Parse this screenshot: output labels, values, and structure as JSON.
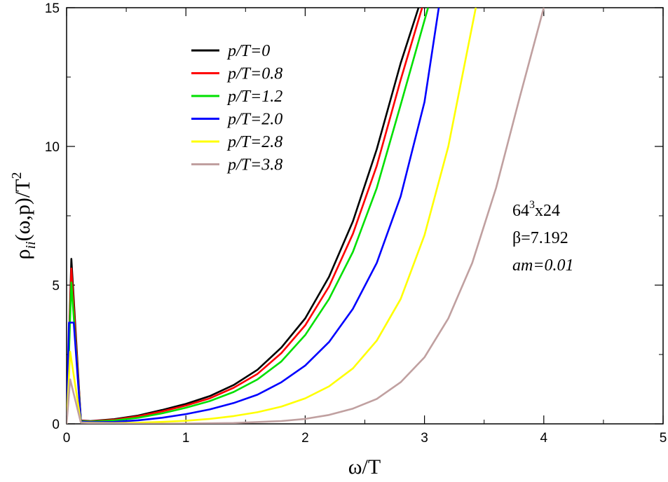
{
  "chart_data": {
    "type": "line",
    "xlabel": "ω/T",
    "ylabel": "ρ",
    "ylabel_sub": "ii",
    "ylabel_tail": "(ω,p)/T",
    "ylabel_sup": "2",
    "xlim": [
      0,
      5
    ],
    "ylim": [
      0,
      15
    ],
    "xticks": [
      "0",
      "1",
      "2",
      "3",
      "4",
      "5"
    ],
    "yticks": [
      "0",
      "5",
      "10",
      "15"
    ],
    "grid": false,
    "legend_position": "top-left",
    "annotations": {
      "lattice_base": "64",
      "lattice_exp": "3",
      "lattice_tail": "x24",
      "beta": "β=7.192",
      "mass": "am=0.01"
    },
    "series": [
      {
        "name": "p/T=0",
        "color": "#000000",
        "x": [
          0,
          0.04,
          0.12,
          0.2,
          0.4,
          0.6,
          0.8,
          1.0,
          1.2,
          1.4,
          1.6,
          1.8,
          2.0,
          2.2,
          2.4,
          2.6,
          2.8,
          2.95
        ],
        "y": [
          0,
          5.95,
          0.12,
          0.1,
          0.17,
          0.3,
          0.5,
          0.72,
          1.0,
          1.4,
          1.95,
          2.75,
          3.8,
          5.3,
          7.3,
          9.9,
          13.0,
          15.0
        ]
      },
      {
        "name": "p/T=0.8",
        "color": "#ff0000",
        "x": [
          0,
          0.04,
          0.12,
          0.2,
          0.4,
          0.6,
          0.8,
          1.0,
          1.2,
          1.4,
          1.6,
          1.8,
          2.0,
          2.2,
          2.4,
          2.6,
          2.8,
          2.98
        ],
        "y": [
          0,
          5.6,
          0.11,
          0.09,
          0.15,
          0.27,
          0.45,
          0.66,
          0.92,
          1.3,
          1.8,
          2.55,
          3.55,
          4.95,
          6.85,
          9.3,
          12.4,
          15.0
        ]
      },
      {
        "name": "p/T=1.2",
        "color": "#00e000",
        "x": [
          0,
          0.04,
          0.12,
          0.2,
          0.4,
          0.6,
          0.8,
          1.0,
          1.2,
          1.4,
          1.6,
          1.8,
          2.0,
          2.2,
          2.4,
          2.6,
          2.8,
          3.03
        ],
        "y": [
          0,
          5.1,
          0.1,
          0.08,
          0.12,
          0.22,
          0.38,
          0.58,
          0.82,
          1.15,
          1.6,
          2.25,
          3.2,
          4.5,
          6.2,
          8.5,
          11.5,
          15.0
        ]
      },
      {
        "name": "p/T=2.0",
        "color": "#0000ff",
        "x": [
          0,
          0.02,
          0.06,
          0.12,
          0.2,
          0.4,
          0.6,
          0.8,
          1.0,
          1.2,
          1.4,
          1.6,
          1.8,
          2.0,
          2.2,
          2.4,
          2.6,
          2.8,
          3.0,
          3.12
        ],
        "y": [
          0,
          3.65,
          3.65,
          0.08,
          0.06,
          0.07,
          0.13,
          0.22,
          0.35,
          0.52,
          0.75,
          1.05,
          1.5,
          2.1,
          2.95,
          4.15,
          5.8,
          8.2,
          11.6,
          15.0
        ]
      },
      {
        "name": "p/T=2.8",
        "color": "#ffff00",
        "x": [
          0,
          0.03,
          0.12,
          0.2,
          0.4,
          0.6,
          0.8,
          1.0,
          1.2,
          1.4,
          1.6,
          1.8,
          2.0,
          2.2,
          2.4,
          2.6,
          2.8,
          3.0,
          3.2,
          3.43
        ],
        "y": [
          0,
          2.6,
          0.05,
          0.04,
          0.03,
          0.04,
          0.07,
          0.11,
          0.18,
          0.28,
          0.42,
          0.62,
          0.92,
          1.35,
          2.0,
          3.0,
          4.5,
          6.8,
          10.0,
          15.0
        ]
      },
      {
        "name": "p/T=3.8",
        "color": "#c0a0a0",
        "x": [
          0,
          0.03,
          0.12,
          0.2,
          0.6,
          1.0,
          1.4,
          1.8,
          2.0,
          2.2,
          2.4,
          2.6,
          2.8,
          3.0,
          3.2,
          3.4,
          3.6,
          3.8,
          4.0
        ],
        "y": [
          0,
          1.6,
          0.04,
          0.03,
          0.0,
          0.01,
          0.03,
          0.1,
          0.18,
          0.32,
          0.55,
          0.9,
          1.5,
          2.4,
          3.8,
          5.8,
          8.5,
          11.8,
          15.0
        ]
      }
    ]
  }
}
